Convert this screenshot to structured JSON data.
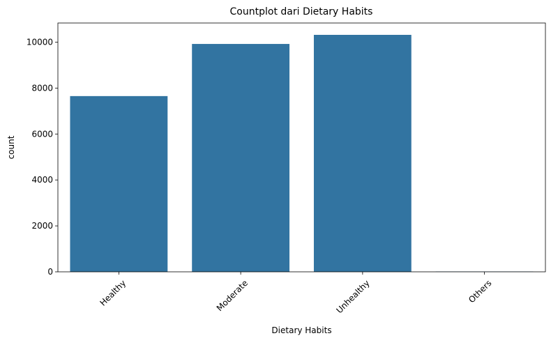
{
  "chart_data": {
    "type": "bar",
    "title": "Countplot dari Dietary Habits",
    "xlabel": "Dietary Habits",
    "ylabel": "count",
    "categories": [
      "Healthy",
      "Moderate",
      "Unhealthy",
      "Others"
    ],
    "values": [
      7651,
      9921,
      10317,
      12
    ],
    "ylim": [
      0,
      10833
    ],
    "yticks": [
      0,
      2000,
      4000,
      6000,
      8000,
      10000
    ],
    "bar_color": "#3274a1",
    "grid": false,
    "legend": false,
    "xtick_rotation": 45
  }
}
